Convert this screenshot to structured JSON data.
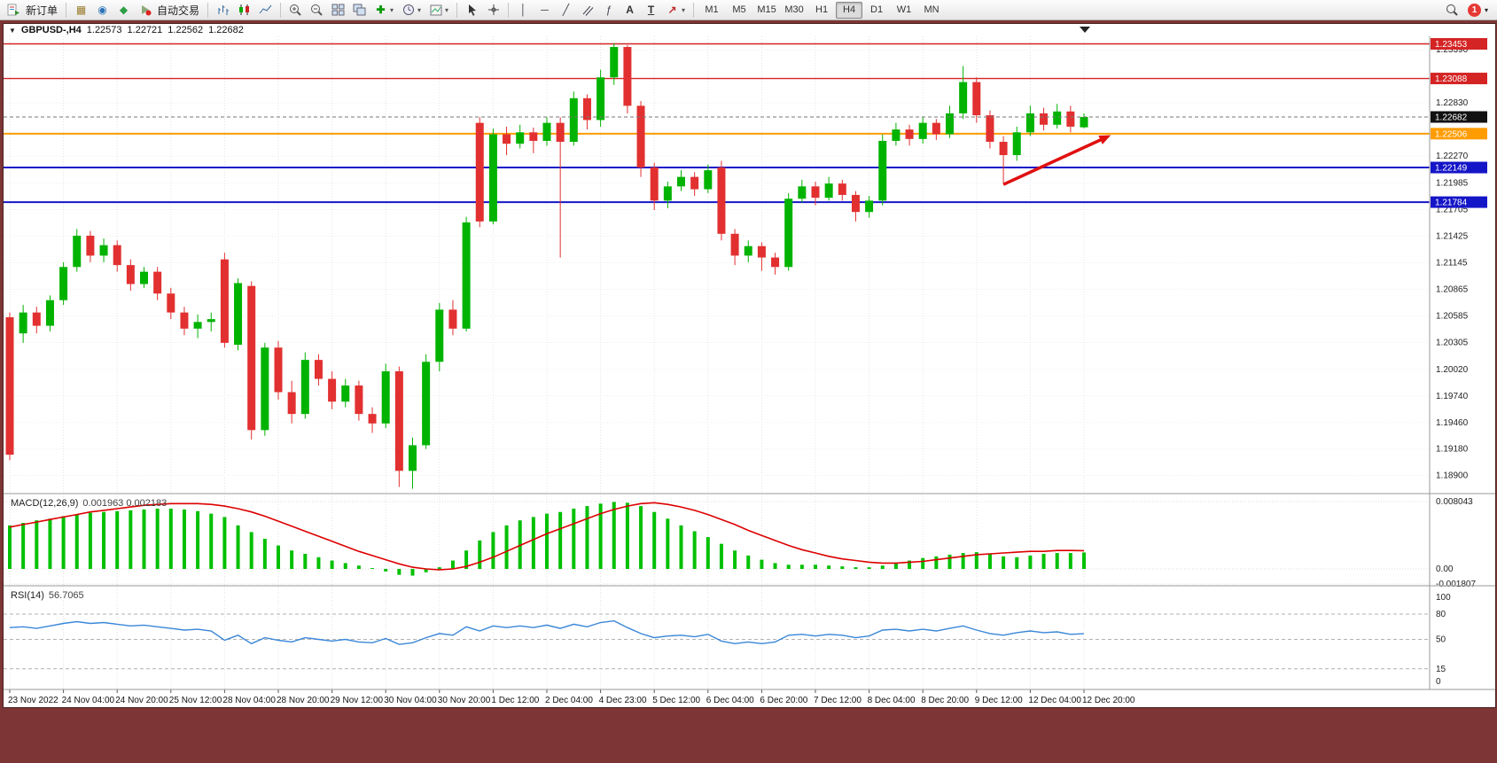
{
  "toolbar": {
    "new_order_label": "新订单",
    "autotrading_label": "自动交易",
    "timeframes": [
      "M1",
      "M5",
      "M15",
      "M30",
      "H1",
      "H4",
      "D1",
      "W1",
      "MN"
    ],
    "active_timeframe": "H4",
    "notification_count": "1"
  },
  "icons": {
    "dropdown": "▾",
    "title_dropdown": "▼",
    "profile": "▦",
    "community": "◉",
    "market": "◆",
    "indicators_plus": "✚",
    "vline": "│",
    "hline": "─",
    "trendline": "╱",
    "fibonacci": "ƒ",
    "text_tool": "A",
    "label_tool": "T",
    "arrows_tool": "↗"
  },
  "chart_title": {
    "symbol": "GBPUSD-,H4",
    "open": "1.22573",
    "high": "1.22721",
    "low": "1.22562",
    "close": "1.22682"
  },
  "indicators": {
    "macd_label": "MACD(12,26,9)",
    "macd_values": "0.001963 0.002183",
    "rsi_label": "RSI(14)",
    "rsi_value": "56.7065"
  },
  "chart_data": {
    "type": "candlestick",
    "symbol": "GBPUSD-",
    "period": "H4",
    "current_bid": "1.22682",
    "bars_per_label": 4,
    "x_labels": [
      "23 Nov 2022",
      "24 Nov 04:00",
      "24 Nov 20:00",
      "25 Nov 12:00",
      "28 Nov 04:00",
      "28 Nov 20:00",
      "29 Nov 12:00",
      "30 Nov 04:00",
      "30 Nov 20:00",
      "1 Dec 12:00",
      "2 Dec 04:00",
      "4 Dec 23:00",
      "5 Dec 12:00",
      "6 Dec 04:00",
      "6 Dec 20:00",
      "7 Dec 12:00",
      "8 Dec 04:00",
      "8 Dec 20:00",
      "9 Dec 12:00",
      "12 Dec 04:00",
      "12 Dec 20:00"
    ],
    "price_axis_labels": [
      "1.23390",
      "1.22830",
      "1.22270",
      "1.21985",
      "1.21705",
      "1.21425",
      "1.21145",
      "1.20865",
      "1.20585",
      "1.20305",
      "1.20020",
      "1.19740",
      "1.19460",
      "1.19180",
      "1.18900"
    ],
    "levels": [
      {
        "price": "1.23453",
        "value": 1.23453,
        "color": "#d42424",
        "width": 1.4,
        "kind": "resistance"
      },
      {
        "price": "1.23088",
        "value": 1.23088,
        "color": "#d42424",
        "width": 1.4,
        "kind": "resistance"
      },
      {
        "price": "1.22682",
        "value": 1.22682,
        "color": "#111111",
        "width": 1,
        "kind": "bid"
      },
      {
        "price": "1.22506",
        "value": 1.22506,
        "color": "#ff9c00",
        "width": 2,
        "kind": "level"
      },
      {
        "price": "1.22149",
        "value": 1.22149,
        "color": "#1515c8",
        "width": 2,
        "kind": "support"
      },
      {
        "price": "1.21784",
        "value": 1.21784,
        "color": "#1515c8",
        "width": 2,
        "kind": "support"
      }
    ],
    "colors": {
      "up": "#00b300",
      "down": "#e23030"
    },
    "candles": [
      [
        1.2057,
        1.2062,
        1.1906,
        1.1912
      ],
      [
        1.204,
        1.207,
        1.203,
        1.2062
      ],
      [
        1.2062,
        1.2068,
        1.204,
        1.2048
      ],
      [
        1.2048,
        1.208,
        1.2042,
        1.2075
      ],
      [
        1.2075,
        1.2115,
        1.207,
        1.211
      ],
      [
        1.211,
        1.215,
        1.2105,
        1.2143
      ],
      [
        1.2143,
        1.2148,
        1.2115,
        1.2122
      ],
      [
        1.2122,
        1.214,
        1.2115,
        1.2133
      ],
      [
        1.2133,
        1.2138,
        1.2105,
        1.2112
      ],
      [
        1.2112,
        1.2118,
        1.2085,
        1.2092
      ],
      [
        1.2092,
        1.211,
        1.2088,
        1.2105
      ],
      [
        1.2105,
        1.211,
        1.2075,
        1.2082
      ],
      [
        1.2082,
        1.2088,
        1.2055,
        1.2062
      ],
      [
        1.2062,
        1.2068,
        1.2038,
        1.2045
      ],
      [
        1.2045,
        1.206,
        1.2035,
        1.2052
      ],
      [
        1.2052,
        1.2062,
        1.2042,
        1.2055
      ],
      [
        1.2118,
        1.2125,
        1.2025,
        1.203
      ],
      [
        1.2028,
        1.2098,
        1.2022,
        1.2093
      ],
      [
        1.209,
        1.2095,
        1.1928,
        1.1938
      ],
      [
        1.1938,
        1.203,
        1.1932,
        1.2025
      ],
      [
        1.2025,
        1.2032,
        1.197,
        1.1978
      ],
      [
        1.1978,
        1.199,
        1.1945,
        1.1955
      ],
      [
        1.1955,
        1.202,
        1.195,
        1.2012
      ],
      [
        1.2012,
        1.2018,
        1.1985,
        1.1992
      ],
      [
        1.1992,
        1.2,
        1.196,
        1.1968
      ],
      [
        1.1968,
        1.1992,
        1.1962,
        1.1985
      ],
      [
        1.1985,
        1.199,
        1.1948,
        1.1955
      ],
      [
        1.1955,
        1.1962,
        1.1935,
        1.1945
      ],
      [
        1.1945,
        1.2008,
        1.194,
        1.2
      ],
      [
        1.2,
        1.2005,
        1.1878,
        1.1895
      ],
      [
        1.1895,
        1.193,
        1.1876,
        1.1922
      ],
      [
        1.1922,
        1.2018,
        1.1918,
        1.201
      ],
      [
        1.201,
        1.2072,
        1.2,
        1.2065
      ],
      [
        1.2065,
        1.2075,
        1.2038,
        1.2045
      ],
      [
        1.2045,
        1.2163,
        1.2042,
        1.2157
      ],
      [
        1.2262,
        1.2268,
        1.2152,
        1.2158
      ],
      [
        1.2158,
        1.2256,
        1.2155,
        1.225
      ],
      [
        1.225,
        1.2258,
        1.2228,
        1.224
      ],
      [
        1.224,
        1.226,
        1.2235,
        1.2252
      ],
      [
        1.2252,
        1.2257,
        1.223,
        1.2243
      ],
      [
        1.2243,
        1.2268,
        1.2238,
        1.2262
      ],
      [
        1.2262,
        1.2268,
        1.212,
        1.2242
      ],
      [
        1.2242,
        1.2295,
        1.2238,
        1.2288
      ],
      [
        1.2288,
        1.2292,
        1.2255,
        1.2265
      ],
      [
        1.2265,
        1.2318,
        1.2258,
        1.231
      ],
      [
        1.231,
        1.2346,
        1.2302,
        1.2342
      ],
      [
        1.2342,
        1.2344,
        1.2272,
        1.228
      ],
      [
        1.228,
        1.2285,
        1.2205,
        1.2215
      ],
      [
        1.2215,
        1.222,
        1.217,
        1.218
      ],
      [
        1.218,
        1.22,
        1.2172,
        1.2195
      ],
      [
        1.2195,
        1.2212,
        1.219,
        1.2205
      ],
      [
        1.2205,
        1.221,
        1.2185,
        1.2192
      ],
      [
        1.2192,
        1.2218,
        1.2188,
        1.2212
      ],
      [
        1.2215,
        1.2222,
        1.2138,
        1.2145
      ],
      [
        1.2145,
        1.215,
        1.2112,
        1.2122
      ],
      [
        1.2122,
        1.2138,
        1.2115,
        1.2132
      ],
      [
        1.2132,
        1.2136,
        1.2106,
        1.212
      ],
      [
        1.212,
        1.2125,
        1.2102,
        1.211
      ],
      [
        1.211,
        1.2188,
        1.2106,
        1.2182
      ],
      [
        1.2182,
        1.2202,
        1.2178,
        1.2195
      ],
      [
        1.2195,
        1.22,
        1.2175,
        1.2183
      ],
      [
        1.2183,
        1.2205,
        1.218,
        1.2198
      ],
      [
        1.2198,
        1.2202,
        1.218,
        1.2186
      ],
      [
        1.2186,
        1.219,
        1.2158,
        1.2168
      ],
      [
        1.2168,
        1.2185,
        1.2162,
        1.218
      ],
      [
        1.218,
        1.225,
        1.2175,
        1.2243
      ],
      [
        1.2243,
        1.2262,
        1.2238,
        1.2255
      ],
      [
        1.2255,
        1.226,
        1.2238,
        1.2245
      ],
      [
        1.2245,
        1.2268,
        1.224,
        1.2262
      ],
      [
        1.2262,
        1.2266,
        1.2244,
        1.225
      ],
      [
        1.225,
        1.228,
        1.2246,
        1.2272
      ],
      [
        1.2272,
        1.2322,
        1.2266,
        1.2305
      ],
      [
        1.2305,
        1.231,
        1.2262,
        1.227
      ],
      [
        1.227,
        1.2275,
        1.2235,
        1.2242
      ],
      [
        1.2242,
        1.2248,
        1.2198,
        1.2228
      ],
      [
        1.2228,
        1.2258,
        1.2222,
        1.2252
      ],
      [
        1.2252,
        1.228,
        1.2248,
        1.2272
      ],
      [
        1.2272,
        1.2278,
        1.2254,
        1.226
      ],
      [
        1.226,
        1.2282,
        1.2256,
        1.2274
      ],
      [
        1.2274,
        1.228,
        1.2252,
        1.2258
      ],
      [
        1.22573,
        1.22721,
        1.22562,
        1.22682
      ]
    ],
    "macd": {
      "axis": [
        {
          "label": "0.008043",
          "value": 0.008043
        },
        {
          "label": "0.00",
          "value": 0
        },
        {
          "label": "-0.001807",
          "value": -0.001807
        }
      ],
      "hist_color": "#00c000",
      "signal_color": "#dd0000",
      "histogram": [
        0.0052,
        0.0055,
        0.0058,
        0.006,
        0.0063,
        0.0065,
        0.0067,
        0.0068,
        0.0069,
        0.007,
        0.0071,
        0.0072,
        0.0072,
        0.0071,
        0.0069,
        0.0066,
        0.0062,
        0.0052,
        0.0044,
        0.0036,
        0.0028,
        0.0022,
        0.0018,
        0.0014,
        0.001,
        0.0007,
        0.0004,
        0.0001,
        -0.0003,
        -0.0007,
        -0.0008,
        -0.0004,
        0.0002,
        0.001,
        0.0022,
        0.0034,
        0.0044,
        0.0052,
        0.0058,
        0.0062,
        0.0066,
        0.0068,
        0.0072,
        0.0075,
        0.0078,
        0.008,
        0.0079,
        0.0075,
        0.0068,
        0.006,
        0.0052,
        0.0045,
        0.0038,
        0.003,
        0.0022,
        0.0016,
        0.0011,
        0.0007,
        0.0005,
        0.0005,
        0.0005,
        0.0004,
        0.0003,
        0.0002,
        0.0002,
        0.0004,
        0.0007,
        0.001,
        0.0013,
        0.0015,
        0.0017,
        0.0019,
        0.002,
        0.0018,
        0.0015,
        0.0014,
        0.0016,
        0.0018,
        0.0019,
        0.0019,
        0.001963
      ],
      "signal": [
        0.005,
        0.0053,
        0.0056,
        0.0059,
        0.0062,
        0.0065,
        0.0068,
        0.007,
        0.0072,
        0.0074,
        0.0076,
        0.0077,
        0.0078,
        0.0078,
        0.0078,
        0.0077,
        0.0075,
        0.0072,
        0.0068,
        0.0063,
        0.0057,
        0.0051,
        0.0045,
        0.0039,
        0.0033,
        0.0027,
        0.0021,
        0.0016,
        0.0011,
        0.0006,
        0.0002,
        0.0,
        -0.0001,
        0.0,
        0.0003,
        0.0008,
        0.0014,
        0.0021,
        0.0028,
        0.0035,
        0.0042,
        0.0048,
        0.0054,
        0.006,
        0.0066,
        0.0071,
        0.0075,
        0.0078,
        0.0079,
        0.0077,
        0.0074,
        0.007,
        0.0065,
        0.0059,
        0.0053,
        0.0046,
        0.004,
        0.0034,
        0.0028,
        0.0023,
        0.0019,
        0.0015,
        0.0012,
        0.001,
        0.0008,
        0.0007,
        0.0007,
        0.0008,
        0.0009,
        0.0011,
        0.0013,
        0.0015,
        0.0017,
        0.0018,
        0.0019,
        0.002,
        0.0021,
        0.0021,
        0.0022,
        0.0022,
        0.002183
      ]
    },
    "rsi": {
      "axis": [
        {
          "label": "100",
          "value": 100
        },
        {
          "label": "80",
          "value": 80,
          "dashed": true
        },
        {
          "label": "50",
          "value": 50,
          "dashed": true
        },
        {
          "label": "15",
          "value": 15,
          "dashed": true
        },
        {
          "label": "0",
          "value": 0
        }
      ],
      "color": "#3a87d8",
      "values": [
        64,
        65,
        63,
        66,
        69,
        71,
        69,
        70,
        68,
        66,
        67,
        65,
        63,
        61,
        62,
        60,
        49,
        55,
        45,
        52,
        49,
        47,
        52,
        50,
        48,
        50,
        47,
        46,
        51,
        44,
        46,
        52,
        57,
        55,
        65,
        60,
        66,
        64,
        66,
        64,
        67,
        63,
        68,
        65,
        70,
        72,
        64,
        57,
        52,
        54,
        55,
        53,
        56,
        48,
        45,
        47,
        45,
        47,
        55,
        56,
        54,
        56,
        55,
        52,
        54,
        61,
        62,
        60,
        62,
        60,
        63,
        66,
        61,
        57,
        55,
        58,
        60,
        58,
        59,
        56,
        56.7
      ]
    },
    "arrow": {
      "from_bar": 74,
      "from_price": 1.2197,
      "to_bar": 82,
      "to_price": 1.2249,
      "color": "#e01010"
    }
  }
}
